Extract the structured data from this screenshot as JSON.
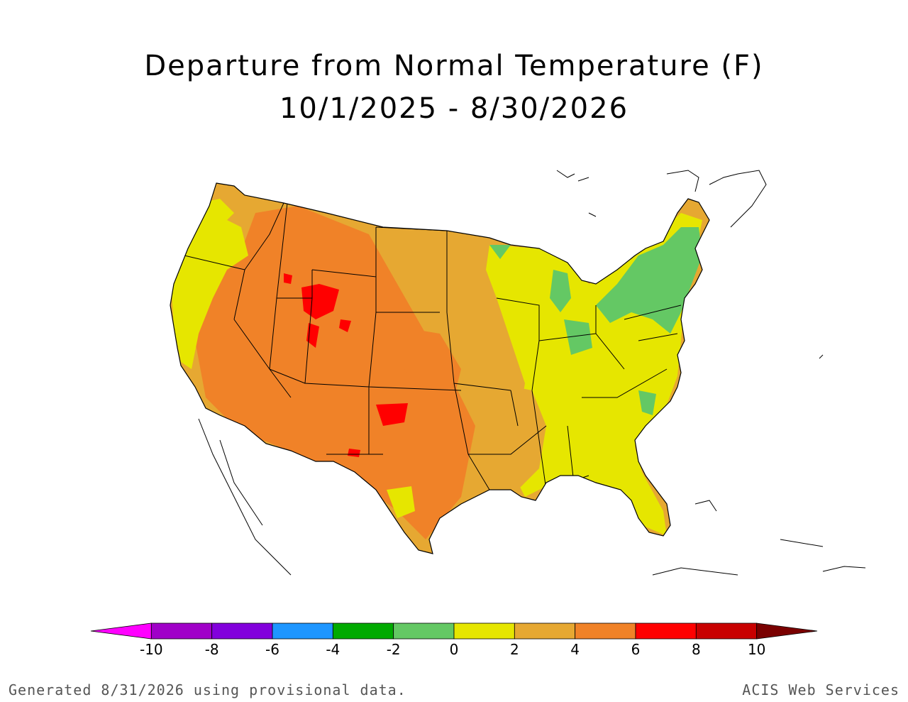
{
  "title": "Departure from Normal Temperature (F)",
  "subtitle": "10/1/2025 - 8/30/2026",
  "legend": {
    "bins": [
      {
        "from": null,
        "to": -10,
        "color": "#ff00ff"
      },
      {
        "from": -10,
        "to": -8,
        "color": "#a000c8"
      },
      {
        "from": -8,
        "to": -6,
        "color": "#8200dc"
      },
      {
        "from": -6,
        "to": -4,
        "color": "#1e96ff"
      },
      {
        "from": -4,
        "to": -2,
        "color": "#00aa00"
      },
      {
        "from": -2,
        "to": 0,
        "color": "#64c864"
      },
      {
        "from": 0,
        "to": 2,
        "color": "#e6e600"
      },
      {
        "from": 2,
        "to": 4,
        "color": "#e6a832"
      },
      {
        "from": 4,
        "to": 6,
        "color": "#f08228"
      },
      {
        "from": 6,
        "to": 8,
        "color": "#ff0000"
      },
      {
        "from": 8,
        "to": 10,
        "color": "#c80000"
      },
      {
        "from": 10,
        "to": null,
        "color": "#7a0000"
      }
    ],
    "tick_labels": [
      "-10",
      "-8",
      "-6",
      "-4",
      "-2",
      "0",
      "2",
      "4",
      "6",
      "8",
      "10"
    ]
  },
  "map": {
    "region": "Contiguous United States",
    "background_color": "#e6a832",
    "region_values": [
      {
        "area": "Pacific Northwest coast",
        "bin": "0 to 2"
      },
      {
        "area": "California coast",
        "bin": "0 to 2"
      },
      {
        "area": "Great Basin and Southwest",
        "bin": "4 to 6"
      },
      {
        "area": "Wyoming / northern Utah",
        "bin": "6 to 8"
      },
      {
        "area": "Northern Plains",
        "bin": "2 to 4"
      },
      {
        "area": "Southern Plains and Texas",
        "bin": "4 to 6"
      },
      {
        "area": "Upper Midwest and Great Lakes",
        "bin": "0 to 2"
      },
      {
        "area": "Ohio Valley",
        "bin": "0 to 2"
      },
      {
        "area": "Northeast",
        "bin": "-2 to 0"
      },
      {
        "area": "Southeast",
        "bin": "0 to 2"
      },
      {
        "area": "Florida",
        "bin": "0 to 2"
      },
      {
        "area": "Lower Mississippi Valley",
        "bin": "2 to 4"
      }
    ]
  },
  "footer": {
    "left": "Generated 8/31/2026 using provisional data.",
    "right": "ACIS Web Services"
  }
}
